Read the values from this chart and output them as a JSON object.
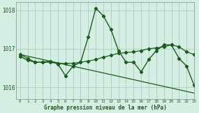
{
  "background_color": "#d4eee4",
  "grid_color": "#aaccbb",
  "line_color": "#1a5c1a",
  "title": "Graphe pression niveau de la mer (hPa)",
  "xlim": [
    -0.5,
    23
  ],
  "ylim": [
    1015.7,
    1018.2
  ],
  "yticks": [
    1016,
    1017,
    1018
  ],
  "xticks": [
    0,
    1,
    2,
    3,
    4,
    5,
    6,
    7,
    8,
    9,
    10,
    11,
    12,
    13,
    14,
    15,
    16,
    17,
    18,
    19,
    20,
    21,
    22,
    23
  ],
  "series1_x": [
    0,
    1,
    2,
    3,
    4,
    5,
    6,
    7,
    8,
    9,
    10,
    11,
    12,
    13,
    14,
    15,
    16,
    17,
    18,
    19,
    20,
    21,
    22,
    23
  ],
  "series1_y": [
    1016.8,
    1016.7,
    1016.65,
    1016.65,
    1016.68,
    1016.6,
    1016.3,
    1016.55,
    1016.65,
    1017.3,
    1018.05,
    1017.85,
    1017.5,
    1016.95,
    1016.65,
    1016.65,
    1016.4,
    1016.72,
    1016.95,
    1017.1,
    1017.1,
    1016.75,
    1016.55,
    1016.05
  ],
  "series2_x": [
    0,
    1,
    2,
    3,
    4,
    5,
    6,
    7,
    8,
    9,
    10,
    11,
    12,
    13,
    14,
    15,
    16,
    17,
    18,
    19,
    20,
    21,
    22,
    23
  ],
  "series2_y": [
    1016.85,
    1016.75,
    1016.65,
    1016.65,
    1016.65,
    1016.62,
    1016.62,
    1016.62,
    1016.65,
    1016.68,
    1016.72,
    1016.78,
    1016.83,
    1016.88,
    1016.9,
    1016.92,
    1016.95,
    1017.0,
    1017.02,
    1017.05,
    1017.1,
    1017.05,
    1016.92,
    1016.85
  ],
  "series3_x": [
    0,
    23
  ],
  "series3_y": [
    1016.85,
    1015.85
  ]
}
